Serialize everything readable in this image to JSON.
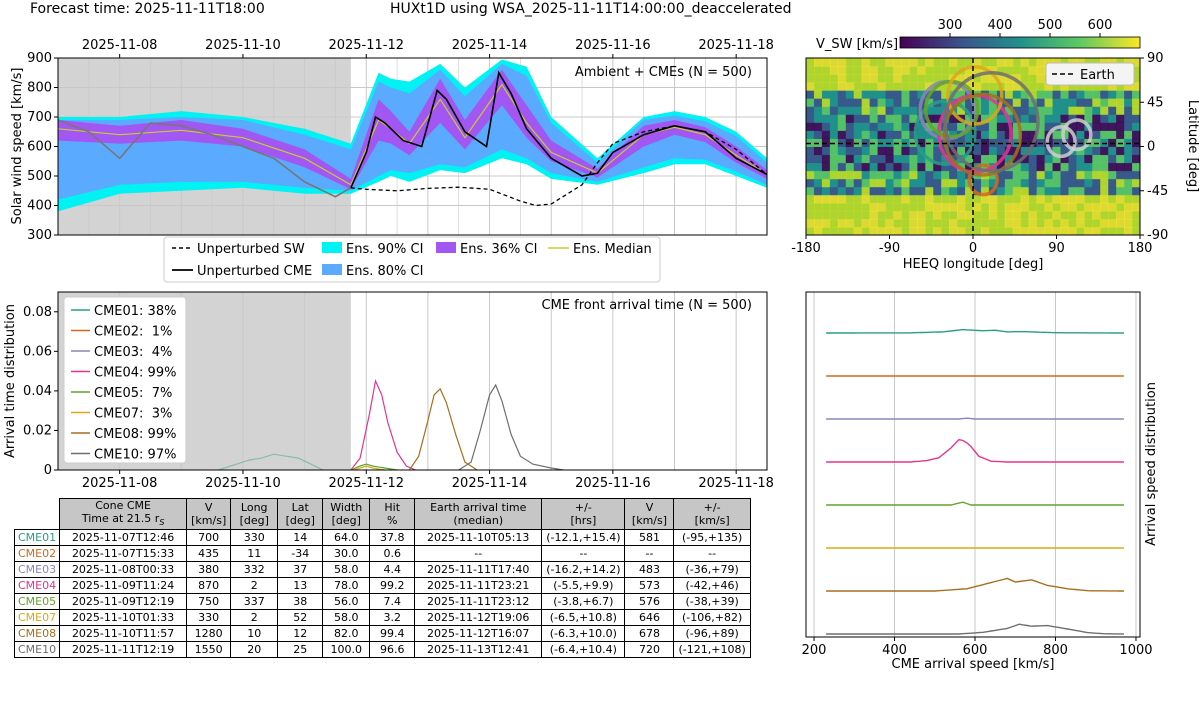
{
  "header": {
    "forecast_time": "Forecast time: 2025-11-11T18:00",
    "run_title": "HUXt1D using WSA_2025-11-11T14:00:00_deaccelerated"
  },
  "colors": {
    "CME01": "#2a9d86",
    "CME02": "#d2691e",
    "CME03": "#8a86b9",
    "CME04": "#e3358f",
    "CME05": "#64a42b",
    "CME07": "#d9a81a",
    "CME08": "#a66f1f",
    "CME10": "#6f6f6f",
    "ci90": "#00f2f2",
    "ci80": "#5aaaff",
    "ci36": "#a256f2",
    "median": "#c8cc33",
    "shade": "#d3d3d3"
  },
  "chart_data": [
    {
      "type": "area",
      "panel": "solar-wind-speed",
      "title": "Ambient + CMEs (N = 500)",
      "ylabel": "Solar wind speed [km/s]",
      "x_unit": "days since 2025-11-07T00:00",
      "xlim": [
        0,
        11.5
      ],
      "ylim": [
        300,
        900
      ],
      "yticks": [
        300,
        400,
        500,
        600,
        700,
        800,
        900
      ],
      "xtick_labels": [
        {
          "x": 1,
          "label": "2025-11-08"
        },
        {
          "x": 3,
          "label": "2025-11-10"
        },
        {
          "x": 5,
          "label": "2025-11-12"
        },
        {
          "x": 7,
          "label": "2025-11-14"
        },
        {
          "x": 9,
          "label": "2025-11-16"
        },
        {
          "x": 11,
          "label": "2025-11-18"
        }
      ],
      "shaded_until": 4.75,
      "legend": {
        "placement": "below",
        "entries": [
          "Unperturbed SW",
          "Unperturbed CME",
          "Ens. 90% CI",
          "Ens. 80% CI",
          "Ens. 36% CI",
          "Ens. Median"
        ]
      },
      "series": [
        {
          "name": "Unperturbed SW",
          "x": [
            0,
            0.5,
            1.0,
            1.5,
            2.0,
            2.5,
            3.0,
            3.5,
            4.0,
            4.5,
            4.75,
            5.0,
            5.5,
            6.0,
            6.5,
            7.0,
            7.5,
            7.75,
            8.0,
            8.5,
            8.75,
            9.0,
            9.5,
            10.0,
            10.5,
            11.0,
            11.5
          ],
          "values": [
            690,
            650,
            660,
            675,
            670,
            640,
            600,
            560,
            480,
            430,
            460,
            455,
            450,
            458,
            462,
            455,
            415,
            400,
            405,
            470,
            545,
            610,
            650,
            670,
            650,
            590,
            505
          ]
        },
        {
          "name": "Unperturbed CME",
          "x": [
            0,
            0.5,
            1.0,
            1.5,
            2.0,
            2.5,
            3.0,
            3.5,
            4.0,
            4.5,
            4.75,
            5.0,
            5.15,
            5.3,
            5.6,
            5.9,
            6.15,
            6.3,
            6.6,
            6.95,
            7.15,
            7.35,
            7.6,
            8.0,
            8.5,
            8.75,
            9.0,
            9.5,
            10.0,
            10.5,
            11.0,
            11.5
          ],
          "values": [
            690,
            650,
            560,
            680,
            670,
            640,
            600,
            560,
            480,
            430,
            460,
            580,
            700,
            680,
            620,
            600,
            790,
            760,
            650,
            600,
            850,
            780,
            660,
            560,
            500,
            510,
            580,
            640,
            670,
            650,
            560,
            505
          ]
        },
        {
          "name": "Ens. Median",
          "x": [
            0,
            1,
            2,
            3,
            4,
            4.75,
            5.2,
            5.4,
            5.7,
            6.2,
            6.6,
            7.2,
            7.6,
            8.0,
            8.75,
            9.5,
            10.0,
            10.5,
            11.0,
            11.5
          ],
          "values": [
            660,
            640,
            655,
            630,
            560,
            470,
            690,
            660,
            610,
            760,
            630,
            810,
            680,
            580,
            510,
            640,
            665,
            640,
            570,
            505
          ]
        }
      ],
      "bands": [
        {
          "name": "Ens. 90% CI",
          "x": [
            0,
            1,
            2,
            3,
            4,
            4.75,
            5.2,
            5.4,
            5.7,
            6.2,
            6.6,
            7.2,
            7.6,
            8.0,
            8.75,
            9.5,
            10.0,
            10.5,
            11.0,
            11.5
          ],
          "lower": [
            380,
            440,
            450,
            460,
            440,
            440,
            480,
            500,
            480,
            520,
            510,
            560,
            540,
            490,
            470,
            510,
            540,
            540,
            500,
            460
          ],
          "upper": [
            700,
            700,
            720,
            700,
            660,
            610,
            850,
            830,
            820,
            880,
            800,
            895,
            870,
            700,
            560,
            700,
            720,
            700,
            650,
            560
          ]
        },
        {
          "name": "Ens. 80% CI",
          "x": [
            0,
            1,
            2,
            3,
            4,
            4.75,
            5.2,
            5.4,
            5.7,
            6.2,
            6.6,
            7.2,
            7.6,
            8.0,
            8.75,
            9.5,
            10.0,
            10.5,
            11.0,
            11.5
          ],
          "lower": [
            420,
            470,
            480,
            480,
            460,
            450,
            500,
            520,
            510,
            540,
            530,
            590,
            560,
            510,
            480,
            530,
            560,
            555,
            515,
            470
          ],
          "upper": [
            690,
            690,
            700,
            690,
            640,
            590,
            820,
            800,
            780,
            860,
            770,
            880,
            840,
            680,
            545,
            690,
            705,
            685,
            635,
            545
          ]
        },
        {
          "name": "Ens. 36% CI",
          "x": [
            0,
            1,
            2,
            3,
            4,
            4.75,
            5.2,
            5.4,
            5.7,
            6.2,
            6.6,
            7.2,
            7.6,
            8.0,
            8.75,
            9.5,
            10.0,
            10.5,
            11.0,
            11.5
          ],
          "lower": [
            620,
            610,
            620,
            600,
            530,
            455,
            620,
            610,
            570,
            680,
            590,
            740,
            630,
            550,
            495,
            600,
            640,
            615,
            545,
            490
          ],
          "upper": [
            690,
            670,
            690,
            660,
            590,
            490,
            760,
            720,
            650,
            830,
            690,
            860,
            740,
            620,
            525,
            670,
            690,
            665,
            600,
            520
          ]
        }
      ]
    },
    {
      "type": "heatmap",
      "panel": "source-surface-map",
      "colorbar_label": "V_SW [km/s]",
      "colorbar_range": [
        200,
        680
      ],
      "colorbar_ticks": [
        300,
        400,
        500,
        600
      ],
      "xlabel": "HEEQ longitude [deg]",
      "ylabel": "Latitude [deg]",
      "xlim": [
        -180,
        180
      ],
      "ylim": [
        -90,
        90
      ],
      "xticks": [
        -180,
        -90,
        0,
        90,
        180
      ],
      "yticks": [
        90,
        45,
        0,
        -45,
        -90
      ],
      "legend_entry": "Earth",
      "earth_longitude": 0,
      "earth_latitude": 3,
      "cme_cones": [
        {
          "name": "CME01",
          "lon": -30,
          "lat": 14,
          "width": 64
        },
        {
          "name": "CME02",
          "lon": 11,
          "lat": -34,
          "width": 30
        },
        {
          "name": "CME03",
          "lon": -28,
          "lat": 37,
          "width": 58
        },
        {
          "name": "CME04",
          "lon": 2,
          "lat": 13,
          "width": 78
        },
        {
          "name": "CME05",
          "lon": -23,
          "lat": 38,
          "width": 56
        },
        {
          "name": "CME07",
          "lon": 2,
          "lat": 52,
          "width": 58
        },
        {
          "name": "CME08",
          "lon": 10,
          "lat": 12,
          "width": 82
        },
        {
          "name": "CME10",
          "lon": 20,
          "lat": 25,
          "width": 100
        },
        {
          "name": "Ensemble A",
          "lon": 95,
          "lat": 5,
          "width": 30
        },
        {
          "name": "Ensemble B",
          "lon": 112,
          "lat": 12,
          "width": 30
        }
      ]
    },
    {
      "type": "line",
      "panel": "arrival-time-distribution",
      "title": "CME front arrival time (N = 500)",
      "ylabel": "Arrival time distribution",
      "x_unit": "days since 2025-11-07T00:00",
      "xlim": [
        0,
        11.5
      ],
      "ylim": [
        0,
        0.09
      ],
      "yticks": [
        0.0,
        0.02,
        0.04,
        0.06,
        0.08
      ],
      "xtick_labels": [
        {
          "x": 1,
          "label": "2025-11-08"
        },
        {
          "x": 3,
          "label": "2025-11-10"
        },
        {
          "x": 5,
          "label": "2025-11-12"
        },
        {
          "x": 7,
          "label": "2025-11-14"
        },
        {
          "x": 9,
          "label": "2025-11-16"
        },
        {
          "x": 11,
          "label": "2025-11-18"
        }
      ],
      "shaded_until": 4.75,
      "legend": [
        "CME01: 38%",
        "CME02:  1%",
        "CME03:  4%",
        "CME04: 99%",
        "CME05:  7%",
        "CME07:  3%",
        "CME08: 99%",
        "CME10: 97%"
      ],
      "series": [
        {
          "name": "CME01",
          "x": [
            2.6,
            2.9,
            3.1,
            3.3,
            3.5,
            3.7,
            3.9,
            4.1,
            4.3
          ],
          "values": [
            0.0,
            0.003,
            0.005,
            0.006,
            0.008,
            0.007,
            0.006,
            0.003,
            0.0
          ]
        },
        {
          "name": "CME04",
          "x": [
            4.75,
            4.9,
            5.05,
            5.15,
            5.25,
            5.35,
            5.5,
            5.65,
            5.8
          ],
          "values": [
            0.0,
            0.006,
            0.028,
            0.045,
            0.038,
            0.024,
            0.009,
            0.002,
            0.0
          ]
        },
        {
          "name": "CME05",
          "x": [
            4.75,
            4.9,
            5.0,
            5.1,
            5.3,
            5.5
          ],
          "values": [
            0.0,
            0.002,
            0.003,
            0.002,
            0.001,
            0.0
          ]
        },
        {
          "name": "CME07",
          "x": [
            4.8,
            5.0,
            5.1,
            5.3
          ],
          "values": [
            0.0,
            0.002,
            0.001,
            0.0
          ]
        },
        {
          "name": "CME08",
          "x": [
            5.7,
            5.85,
            6.0,
            6.1,
            6.2,
            6.3,
            6.45,
            6.6,
            6.8
          ],
          "values": [
            0.0,
            0.007,
            0.025,
            0.038,
            0.041,
            0.034,
            0.018,
            0.004,
            0.0
          ]
        },
        {
          "name": "CME10",
          "x": [
            6.5,
            6.7,
            6.85,
            7.0,
            7.1,
            7.2,
            7.35,
            7.5,
            7.7,
            8.0,
            8.2
          ],
          "values": [
            0.0,
            0.004,
            0.02,
            0.038,
            0.043,
            0.035,
            0.018,
            0.007,
            0.003,
            0.001,
            0.0
          ]
        }
      ]
    },
    {
      "type": "line",
      "panel": "arrival-speed-distribution",
      "ylabel": "Arrival speed distribution",
      "xlabel": "CME arrival speed [km/s]",
      "xlim": [
        180,
        1010
      ],
      "xticks": [
        200,
        400,
        600,
        800,
        1000
      ],
      "series": [
        {
          "name": "CME01",
          "offset": 7,
          "x": [
            230,
            440,
            520,
            570,
            620,
            650,
            680,
            720,
            800,
            970
          ],
          "values": [
            0,
            0.005,
            0.04,
            0.12,
            0.08,
            0.1,
            0.04,
            0.05,
            0.01,
            0
          ]
        },
        {
          "name": "CME02",
          "offset": 6,
          "x": [
            230,
            970
          ],
          "values": [
            0,
            0
          ]
        },
        {
          "name": "CME03",
          "offset": 5,
          "x": [
            230,
            560,
            580,
            600,
            970
          ],
          "values": [
            0,
            0,
            0.03,
            0,
            0
          ]
        },
        {
          "name": "CME04",
          "offset": 4,
          "x": [
            230,
            440,
            480,
            510,
            540,
            560,
            575,
            590,
            610,
            640,
            680,
            970
          ],
          "values": [
            0,
            0,
            0.05,
            0.15,
            0.5,
            0.8,
            0.75,
            0.55,
            0.2,
            0.03,
            0,
            0
          ]
        },
        {
          "name": "CME05",
          "offset": 3,
          "x": [
            230,
            540,
            570,
            590,
            970
          ],
          "values": [
            0,
            0,
            0.1,
            0,
            0
          ]
        },
        {
          "name": "CME07",
          "offset": 2,
          "x": [
            230,
            970
          ],
          "values": [
            0,
            0
          ]
        },
        {
          "name": "CME08",
          "offset": 1,
          "x": [
            230,
            500,
            580,
            640,
            680,
            700,
            740,
            780,
            830,
            880,
            970
          ],
          "values": [
            0,
            0,
            0.08,
            0.3,
            0.45,
            0.32,
            0.4,
            0.2,
            0.08,
            0.01,
            0
          ]
        },
        {
          "name": "CME10",
          "offset": 0,
          "x": [
            230,
            560,
            620,
            680,
            710,
            740,
            780,
            830,
            880,
            920,
            970
          ],
          "values": [
            0,
            0,
            0.06,
            0.2,
            0.35,
            0.28,
            0.3,
            0.18,
            0.05,
            0.01,
            0
          ]
        }
      ]
    }
  ],
  "table": {
    "headers": [
      [
        "Cone CME",
        "Time at 21.5 r",
        "S"
      ],
      [
        "V",
        "[km/s]"
      ],
      [
        "Long",
        "[deg]"
      ],
      [
        "Lat",
        "[deg]"
      ],
      [
        "Width",
        "[deg]"
      ],
      [
        "Hit",
        "%"
      ],
      [
        "Earth arrival time",
        "(median)"
      ],
      [
        "+/-",
        "[hrs]"
      ],
      [
        "V",
        "[km/s]"
      ],
      [
        "+/-",
        "[km/s]"
      ]
    ],
    "rows": [
      {
        "id": "CME01",
        "cells": [
          "2025-11-07T12:46",
          "700",
          "330",
          "14",
          "64.0",
          "37.8",
          "2025-11-10T05:13",
          "(-12.1,+15.4)",
          "581",
          "(-95,+135)"
        ]
      },
      {
        "id": "CME02",
        "cells": [
          "2025-11-07T15:33",
          "435",
          "11",
          "-34",
          "30.0",
          "0.6",
          "--",
          "--",
          "--",
          "--"
        ]
      },
      {
        "id": "CME03",
        "cells": [
          "2025-11-08T00:33",
          "380",
          "332",
          "37",
          "58.0",
          "4.4",
          "2025-11-11T17:40",
          "(-16.2,+14.2)",
          "483",
          "(-36,+79)"
        ]
      },
      {
        "id": "CME04",
        "cells": [
          "2025-11-09T11:24",
          "870",
          "2",
          "13",
          "78.0",
          "99.2",
          "2025-11-11T23:21",
          "(-5.5,+9.9)",
          "573",
          "(-42,+46)"
        ]
      },
      {
        "id": "CME05",
        "cells": [
          "2025-11-09T12:19",
          "750",
          "337",
          "38",
          "56.0",
          "7.4",
          "2025-11-11T23:12",
          "(-3.8,+6.7)",
          "576",
          "(-38,+39)"
        ]
      },
      {
        "id": "CME07",
        "cells": [
          "2025-11-10T01:33",
          "330",
          "2",
          "52",
          "58.0",
          "3.2",
          "2025-11-12T19:06",
          "(-6.5,+10.8)",
          "646",
          "(-106,+82)"
        ]
      },
      {
        "id": "CME08",
        "cells": [
          "2025-11-10T11:57",
          "1280",
          "10",
          "12",
          "82.0",
          "99.4",
          "2025-11-12T16:07",
          "(-6.3,+10.0)",
          "678",
          "(-96,+89)"
        ]
      },
      {
        "id": "CME10",
        "cells": [
          "2025-11-11T12:19",
          "1550",
          "20",
          "25",
          "100.0",
          "96.6",
          "2025-11-13T12:41",
          "(-6.4,+10.4)",
          "720",
          "(-121,+108)"
        ]
      }
    ]
  }
}
